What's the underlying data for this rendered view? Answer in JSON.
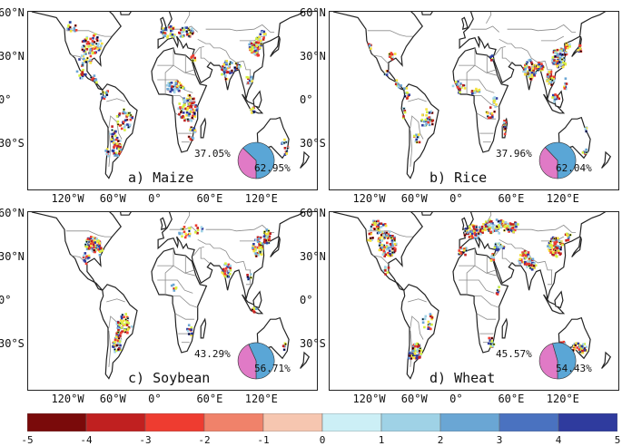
{
  "colors": {
    "land_outline": "#222222",
    "border": "#8a8a8a",
    "pie_pink": "#e07ac6",
    "pie_blue": "#5aa6d6",
    "colorbar": [
      "#7a0a0a",
      "#c02020",
      "#ee3c30",
      "#f0826a",
      "#f6c6b0",
      "#cceff6",
      "#9fd2e6",
      "#6aa6d4",
      "#4a72c0",
      "#2f3b9e"
    ],
    "dots": [
      "#c02020",
      "#ee3c30",
      "#f7e23c",
      "#d6f040",
      "#9fd2e6",
      "#6aa6d4",
      "#2f3b9e"
    ]
  },
  "lat_labels": [
    "60°N",
    "30°N",
    "0°",
    "30°S"
  ],
  "lon_labels": [
    "120°W",
    "60°W",
    "0°",
    "60°E",
    "120°E"
  ],
  "panels": [
    {
      "title": "a) Maize",
      "pie_pink_label": "37.05%",
      "pie_blue_label": "62.95%",
      "pie_pink_fraction": 0.3705
    },
    {
      "title": "b) Rice",
      "pie_pink_label": "37.96%",
      "pie_blue_label": "62.04%",
      "pie_pink_fraction": 0.3796
    },
    {
      "title": "c) Soybean",
      "pie_pink_label": "43.29%",
      "pie_blue_label": "56.71%",
      "pie_pink_fraction": 0.4329
    },
    {
      "title": "d) Wheat",
      "pie_pink_label": "45.57%",
      "pie_blue_label": "54.43%",
      "pie_pink_fraction": 0.4557
    }
  ],
  "colorbar_ticks": [
    "-5",
    "-4",
    "-3",
    "-2",
    "-1",
    "0",
    "1",
    "2",
    "3",
    "4",
    "5"
  ]
}
